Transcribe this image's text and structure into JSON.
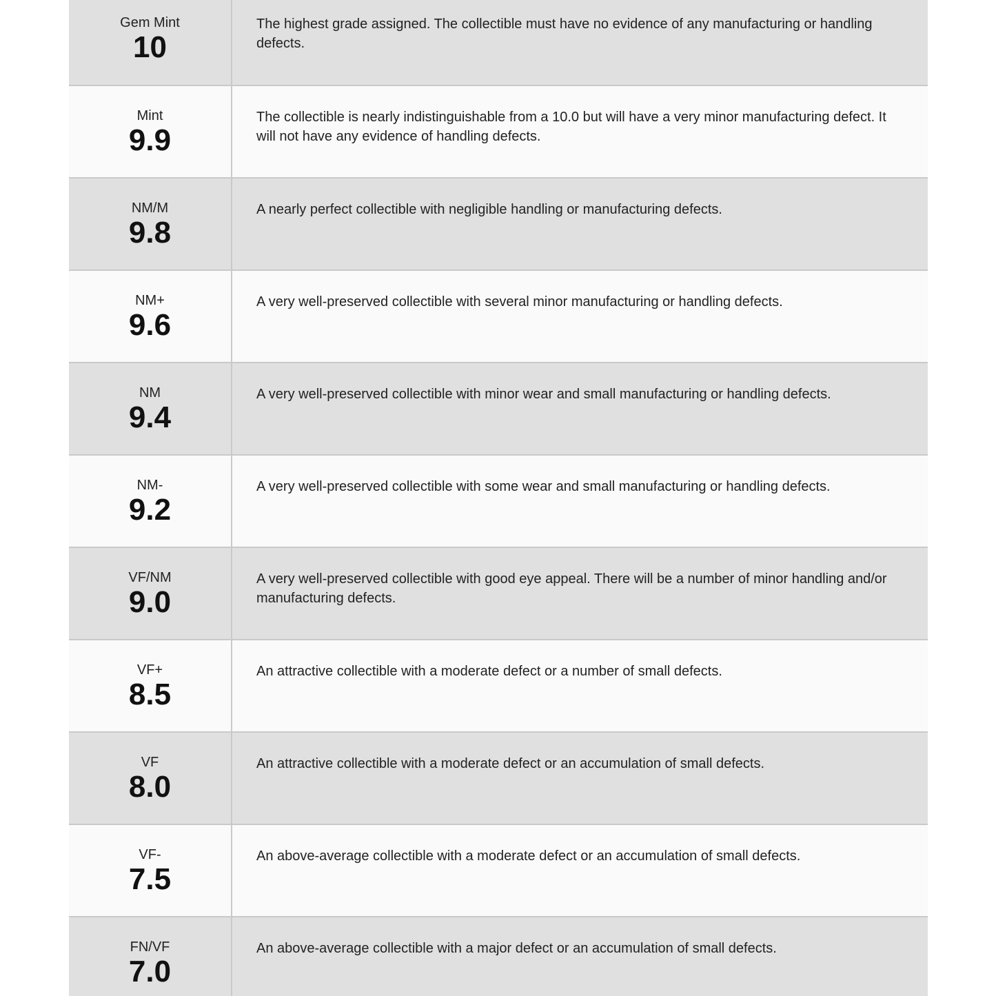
{
  "grades": [
    {
      "label": "Gem Mint",
      "value": "10",
      "description": "The highest grade assigned. The collectible must have no evidence of any manufacturing or handling defects."
    },
    {
      "label": "Mint",
      "value": "9.9",
      "description": "The collectible is nearly indistinguishable from a 10.0 but will have a very minor manufacturing defect. It will not have any evidence of handling defects."
    },
    {
      "label": "NM/M",
      "value": "9.8",
      "description": "A nearly perfect collectible with negligible handling or manufacturing defects."
    },
    {
      "label": "NM+",
      "value": "9.6",
      "description": "A very well-preserved collectible with several minor manufacturing or handling defects."
    },
    {
      "label": "NM",
      "value": "9.4",
      "description": "A very well-preserved collectible with minor wear and small manufacturing or handling defects."
    },
    {
      "label": "NM-",
      "value": "9.2",
      "description": "A very well-preserved collectible with some wear and small manufacturing or handling defects."
    },
    {
      "label": "VF/NM",
      "value": "9.0",
      "description": "A very well-preserved collectible with good eye appeal. There will be a number of minor handling and/or manufacturing defects."
    },
    {
      "label": "VF+",
      "value": "8.5",
      "description": "An attractive collectible with a moderate defect or a number of small defects."
    },
    {
      "label": "VF",
      "value": "8.0",
      "description": "An attractive collectible with a moderate defect or an accumulation of small defects."
    },
    {
      "label": "VF-",
      "value": "7.5",
      "description": "An above-average collectible with a moderate defect or an accumulation of small defects."
    },
    {
      "label": "FN/VF",
      "value": "7.0",
      "description": "An above-average collectible with a major defect or an accumulation of small defects."
    }
  ],
  "colors": {
    "row_gray": "#e0e0e0",
    "row_white": "#fafafa",
    "border": "#c9c9c9"
  }
}
